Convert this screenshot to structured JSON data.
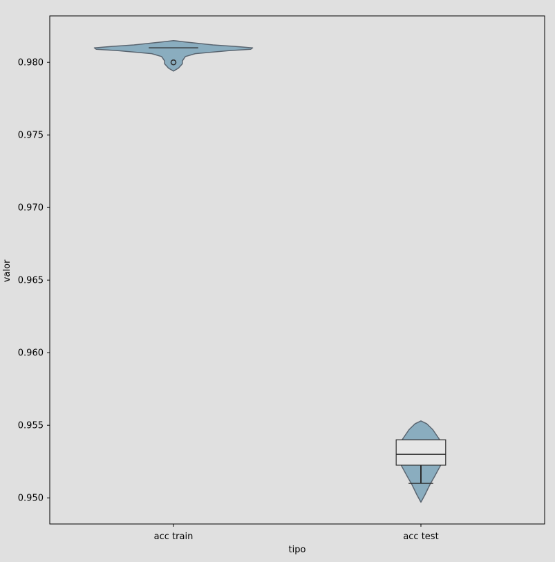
{
  "chart_data": {
    "type": "violin",
    "xlabel": "tipo",
    "ylabel": "valor",
    "categories": [
      "acc train",
      "acc test"
    ],
    "ylim": [
      0.9482,
      0.9832
    ],
    "yticks": [
      "0.950",
      "0.955",
      "0.960",
      "0.965",
      "0.970",
      "0.975",
      "0.980"
    ],
    "grid": false,
    "colors": {
      "background": "#e0e0e0",
      "violin_fill": "#8aadbf",
      "violin_edge": "#5a6570",
      "box_line": "#2b2b2b",
      "box_fill": "#e6e6e6"
    },
    "series": [
      {
        "category": "acc train",
        "range": [
          0.9794,
          0.9815
        ],
        "density": [
          [
            0.9794,
            0.0
          ],
          [
            0.9796,
            0.05
          ],
          [
            0.9799,
            0.09
          ],
          [
            0.9801,
            0.09
          ],
          [
            0.9804,
            0.12
          ],
          [
            0.9806,
            0.22
          ],
          [
            0.9808,
            0.55
          ],
          [
            0.9809,
            0.78
          ],
          [
            0.981,
            0.8
          ],
          [
            0.9811,
            0.62
          ],
          [
            0.9812,
            0.4
          ],
          [
            0.9814,
            0.12
          ],
          [
            0.9815,
            0.0
          ]
        ],
        "median": 0.981,
        "q1": 0.981,
        "q3": 0.981,
        "whisker_low": 0.981,
        "whisker_high": 0.981,
        "outliers": [
          0.98
        ]
      },
      {
        "category": "acc test",
        "range": [
          0.9497,
          0.9553
        ],
        "density": [
          [
            0.9497,
            0.0
          ],
          [
            0.9502,
            0.04
          ],
          [
            0.9509,
            0.09
          ],
          [
            0.9515,
            0.14
          ],
          [
            0.952,
            0.18
          ],
          [
            0.9525,
            0.22
          ],
          [
            0.9532,
            0.22
          ],
          [
            0.9538,
            0.21
          ],
          [
            0.9542,
            0.17
          ],
          [
            0.9547,
            0.12
          ],
          [
            0.9551,
            0.06
          ],
          [
            0.9553,
            0.0
          ]
        ],
        "median": 0.953,
        "q1": 0.95225,
        "q3": 0.954,
        "whisker_low": 0.951,
        "whisker_high": 0.954,
        "outliers": []
      }
    ]
  }
}
